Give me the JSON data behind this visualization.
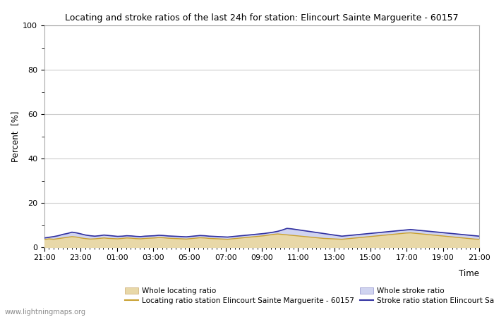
{
  "title": "Locating and stroke ratios of the last 24h for station: Elincourt Sainte Marguerite - 60157",
  "xlabel": "Time",
  "ylabel": "Percent  [%]",
  "ylim": [
    0,
    100
  ],
  "yticks": [
    0,
    20,
    40,
    60,
    80,
    100
  ],
  "ytick_minor": [
    10,
    30,
    50,
    70,
    90
  ],
  "xtick_labels": [
    "21:00",
    "23:00",
    "01:00",
    "03:00",
    "05:00",
    "07:00",
    "09:00",
    "11:00",
    "13:00",
    "15:00",
    "17:00",
    "19:00",
    "21:00"
  ],
  "bg_color": "#ffffff",
  "plot_bg_color": "#ffffff",
  "grid_color": "#cccccc",
  "watermark": "www.lightningmaps.org",
  "whole_locating_fill_color": "#e8d8a8",
  "whole_stroke_fill_color": "#d0d4f0",
  "station_locating_line_color": "#c8a030",
  "station_stroke_line_color": "#3030a0",
  "whole_locating_values": [
    3.5,
    3.8,
    3.6,
    3.9,
    4.2,
    4.5,
    4.8,
    4.6,
    4.2,
    3.9,
    3.7,
    3.8,
    4.0,
    4.2,
    4.0,
    3.9,
    3.8,
    4.0,
    4.2,
    4.1,
    3.9,
    3.8,
    4.0,
    4.1,
    4.2,
    4.4,
    4.3,
    4.1,
    4.0,
    3.9,
    3.8,
    3.7,
    3.9,
    4.1,
    4.3,
    4.2,
    4.0,
    3.9,
    3.8,
    3.7,
    3.6,
    3.8,
    4.0,
    4.2,
    4.4,
    4.6,
    4.8,
    5.0,
    5.2,
    5.5,
    5.8,
    6.0,
    5.8,
    5.6,
    5.4,
    5.2,
    5.0,
    4.8,
    4.6,
    4.4,
    4.2,
    4.0,
    3.9,
    3.8,
    3.7,
    3.6,
    3.8,
    4.0,
    4.2,
    4.4,
    4.6,
    4.8,
    5.0,
    5.2,
    5.4,
    5.6,
    5.8,
    6.0,
    6.2,
    6.4,
    6.5,
    6.3,
    6.1,
    5.9,
    5.7,
    5.5,
    5.3,
    5.1,
    4.9,
    4.7,
    4.5,
    4.3,
    4.1,
    3.9,
    3.7,
    3.6
  ],
  "whole_stroke_values": [
    4.2,
    4.5,
    4.8,
    5.2,
    5.8,
    6.2,
    6.8,
    6.5,
    6.0,
    5.5,
    5.2,
    5.0,
    5.2,
    5.5,
    5.3,
    5.1,
    4.9,
    5.0,
    5.2,
    5.1,
    4.9,
    4.8,
    5.0,
    5.1,
    5.2,
    5.4,
    5.3,
    5.1,
    5.0,
    4.9,
    4.8,
    4.7,
    4.9,
    5.1,
    5.3,
    5.2,
    5.0,
    4.9,
    4.8,
    4.7,
    4.6,
    4.8,
    5.0,
    5.2,
    5.4,
    5.6,
    5.8,
    6.0,
    6.2,
    6.5,
    6.8,
    7.2,
    7.8,
    8.5,
    8.3,
    8.0,
    7.7,
    7.4,
    7.1,
    6.8,
    6.5,
    6.2,
    5.9,
    5.6,
    5.3,
    5.0,
    5.2,
    5.4,
    5.6,
    5.8,
    6.0,
    6.2,
    6.4,
    6.6,
    6.8,
    7.0,
    7.2,
    7.4,
    7.6,
    7.8,
    8.0,
    7.8,
    7.6,
    7.4,
    7.2,
    7.0,
    6.8,
    6.6,
    6.4,
    6.2,
    6.0,
    5.8,
    5.6,
    5.4,
    5.2,
    5.0
  ],
  "station_locating_values": [
    3.5,
    3.8,
    3.6,
    3.9,
    4.2,
    4.5,
    4.8,
    4.6,
    4.2,
    3.9,
    3.7,
    3.8,
    4.0,
    4.2,
    4.0,
    3.9,
    3.8,
    4.0,
    4.2,
    4.1,
    3.9,
    3.8,
    4.0,
    4.1,
    4.2,
    4.4,
    4.3,
    4.1,
    4.0,
    3.9,
    3.8,
    3.7,
    3.9,
    4.1,
    4.3,
    4.2,
    4.0,
    3.9,
    3.8,
    3.7,
    3.6,
    3.8,
    4.0,
    4.2,
    4.4,
    4.6,
    4.8,
    5.0,
    5.2,
    5.5,
    5.8,
    6.0,
    5.8,
    5.6,
    5.4,
    5.2,
    5.0,
    4.8,
    4.6,
    4.4,
    4.2,
    4.0,
    3.9,
    3.8,
    3.7,
    3.6,
    3.8,
    4.0,
    4.2,
    4.4,
    4.6,
    4.8,
    5.0,
    5.2,
    5.4,
    5.6,
    5.8,
    6.0,
    6.2,
    6.4,
    6.5,
    6.3,
    6.1,
    5.9,
    5.7,
    5.5,
    5.3,
    5.1,
    4.9,
    4.7,
    4.5,
    4.3,
    4.1,
    3.9,
    3.7,
    3.6
  ],
  "station_stroke_values": [
    4.2,
    4.5,
    4.8,
    5.2,
    5.8,
    6.2,
    6.8,
    6.5,
    6.0,
    5.5,
    5.2,
    5.0,
    5.2,
    5.5,
    5.3,
    5.1,
    4.9,
    5.0,
    5.2,
    5.1,
    4.9,
    4.8,
    5.0,
    5.1,
    5.2,
    5.4,
    5.3,
    5.1,
    5.0,
    4.9,
    4.8,
    4.7,
    4.9,
    5.1,
    5.3,
    5.2,
    5.0,
    4.9,
    4.8,
    4.7,
    4.6,
    4.8,
    5.0,
    5.2,
    5.4,
    5.6,
    5.8,
    6.0,
    6.2,
    6.5,
    6.8,
    7.2,
    7.8,
    8.5,
    8.3,
    8.0,
    7.7,
    7.4,
    7.1,
    6.8,
    6.5,
    6.2,
    5.9,
    5.6,
    5.3,
    5.0,
    5.2,
    5.4,
    5.6,
    5.8,
    6.0,
    6.2,
    6.4,
    6.6,
    6.8,
    7.0,
    7.2,
    7.4,
    7.6,
    7.8,
    8.0,
    7.8,
    7.6,
    7.4,
    7.2,
    7.0,
    6.8,
    6.6,
    6.4,
    6.2,
    6.0,
    5.8,
    5.6,
    5.4,
    5.2,
    5.0
  ]
}
